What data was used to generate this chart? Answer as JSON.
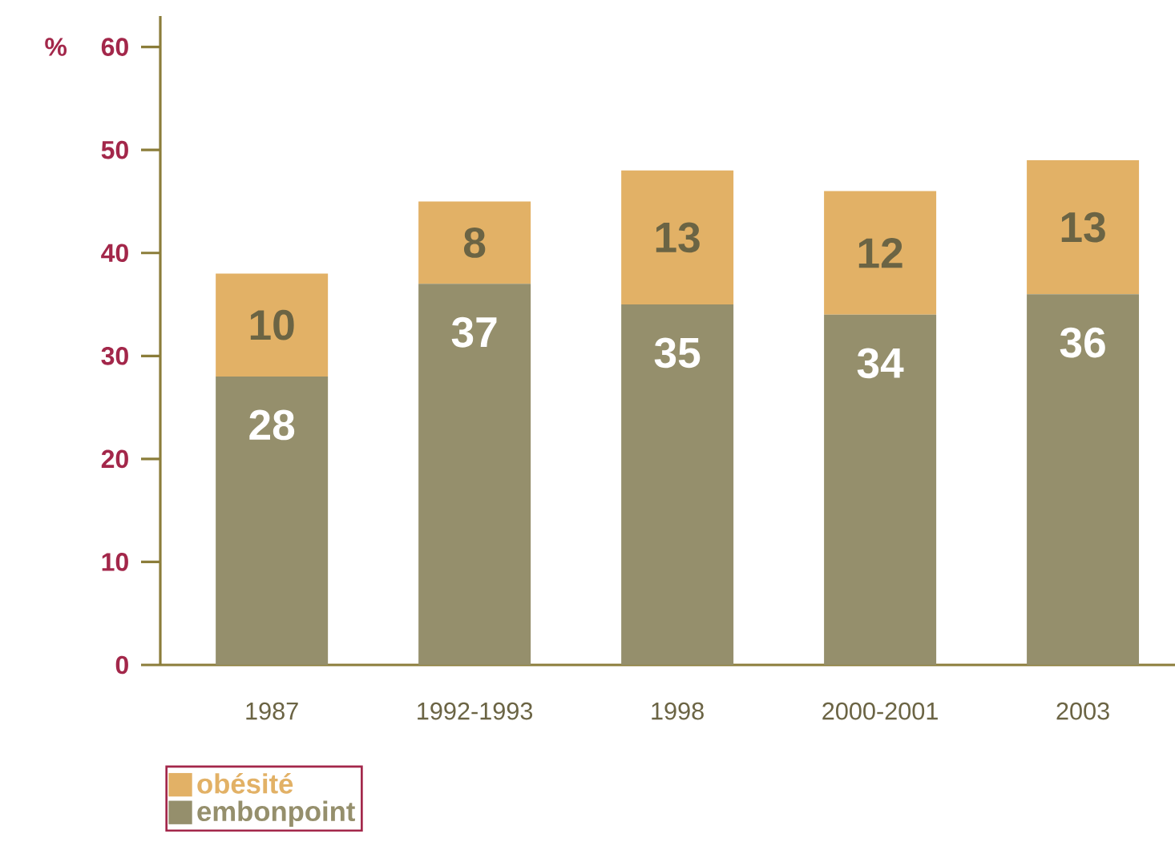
{
  "chart_data": {
    "type": "bar",
    "stacked": true,
    "ylabel": "%",
    "categories": [
      "1987",
      "1992-1993",
      "1998",
      "2000-2001",
      "2003"
    ],
    "series": [
      {
        "name": "embonpoint",
        "color": "#958f6c",
        "values": [
          28,
          37,
          35,
          34,
          36
        ]
      },
      {
        "name": "obésité",
        "color": "#e2b166",
        "values": [
          10,
          8,
          13,
          12,
          13
        ]
      }
    ],
    "ylim": [
      0,
      63
    ],
    "yticks": [
      0,
      10,
      20,
      30,
      40,
      50,
      60
    ],
    "data_labels": true,
    "legend": "bottom left",
    "grid": false
  }
}
